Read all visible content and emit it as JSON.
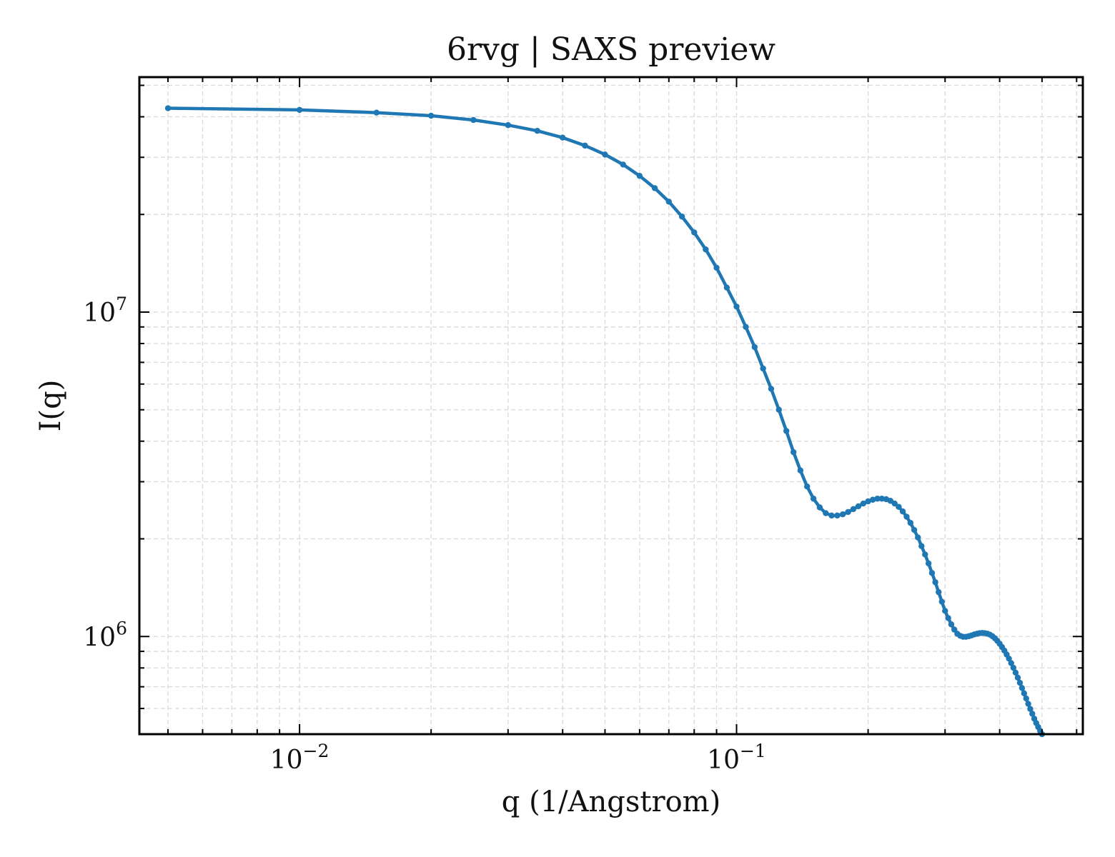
{
  "chart_data": {
    "type": "line",
    "title": "6rvg | SAXS preview",
    "xlabel": "q (1/Angstrom)",
    "ylabel": "I(q)",
    "x_scale": "log",
    "y_scale": "log",
    "xlim": [
      0.0043,
      0.62
    ],
    "ylim": [
      500000,
      53000000
    ],
    "x_ticks": [
      {
        "value": 0.01,
        "base": "10",
        "exp": "−2"
      },
      {
        "value": 0.1,
        "base": "10",
        "exp": "−1"
      }
    ],
    "y_ticks": [
      {
        "value": 1000000,
        "base": "10",
        "exp": "6"
      },
      {
        "value": 10000000,
        "base": "10",
        "exp": "7"
      }
    ],
    "grid": true,
    "line_color": "#1f77b4",
    "series": [
      {
        "marker": "circle",
        "points": [
          [
            0.005,
            42500000
          ],
          [
            0.01,
            42000000
          ],
          [
            0.015,
            41200000
          ],
          [
            0.02,
            40300000
          ],
          [
            0.025,
            39100000
          ],
          [
            0.03,
            37700000
          ],
          [
            0.035,
            36200000
          ],
          [
            0.04,
            34500000
          ],
          [
            0.045,
            32600000
          ],
          [
            0.05,
            30600000
          ],
          [
            0.055,
            28500000
          ],
          [
            0.06,
            26300000
          ],
          [
            0.065,
            24100000
          ],
          [
            0.07,
            21900000
          ],
          [
            0.075,
            19700000
          ],
          [
            0.08,
            17600000
          ],
          [
            0.085,
            15600000
          ],
          [
            0.09,
            13700000
          ],
          [
            0.095,
            11900000
          ],
          [
            0.1,
            10400000
          ],
          [
            0.105,
            9000000
          ],
          [
            0.11,
            7800000
          ],
          [
            0.115,
            6700000
          ],
          [
            0.12,
            5800000
          ],
          [
            0.125,
            5000000
          ],
          [
            0.13,
            4300000
          ],
          [
            0.135,
            3700000
          ],
          [
            0.14,
            3250000
          ],
          [
            0.145,
            2900000
          ],
          [
            0.15,
            2660000
          ],
          [
            0.155,
            2500000
          ],
          [
            0.16,
            2400000
          ],
          [
            0.165,
            2360000
          ],
          [
            0.17,
            2360000
          ],
          [
            0.175,
            2380000
          ],
          [
            0.18,
            2420000
          ],
          [
            0.185,
            2470000
          ],
          [
            0.19,
            2520000
          ],
          [
            0.195,
            2570000
          ],
          [
            0.2,
            2610000
          ],
          [
            0.205,
            2640000
          ],
          [
            0.21,
            2660000
          ],
          [
            0.215,
            2660000
          ],
          [
            0.22,
            2650000
          ],
          [
            0.225,
            2620000
          ],
          [
            0.23,
            2570000
          ],
          [
            0.235,
            2510000
          ],
          [
            0.24,
            2430000
          ],
          [
            0.245,
            2340000
          ],
          [
            0.25,
            2240000
          ],
          [
            0.255,
            2130000
          ],
          [
            0.26,
            2020000
          ],
          [
            0.265,
            1900000
          ],
          [
            0.27,
            1790000
          ],
          [
            0.275,
            1680000
          ],
          [
            0.28,
            1570000
          ],
          [
            0.285,
            1470000
          ],
          [
            0.29,
            1370000
          ],
          [
            0.295,
            1280000
          ],
          [
            0.3,
            1200000
          ],
          [
            0.305,
            1140000
          ],
          [
            0.31,
            1090000
          ],
          [
            0.315,
            1050000
          ],
          [
            0.32,
            1020000
          ],
          [
            0.325,
            1005000
          ],
          [
            0.33,
            998000
          ],
          [
            0.335,
            998000
          ],
          [
            0.34,
            1002000
          ],
          [
            0.345,
            1008000
          ],
          [
            0.35,
            1015000
          ],
          [
            0.355,
            1020000
          ],
          [
            0.36,
            1024000
          ],
          [
            0.365,
            1025000
          ],
          [
            0.37,
            1024000
          ],
          [
            0.375,
            1020000
          ],
          [
            0.38,
            1013000
          ],
          [
            0.385,
            1002000
          ],
          [
            0.39,
            988000
          ],
          [
            0.395,
            970000
          ],
          [
            0.4,
            950000
          ],
          [
            0.405,
            928000
          ],
          [
            0.41,
            905000
          ],
          [
            0.415,
            880000
          ],
          [
            0.42,
            855000
          ],
          [
            0.425,
            828000
          ],
          [
            0.43,
            801000
          ],
          [
            0.435,
            774000
          ],
          [
            0.44,
            747000
          ],
          [
            0.445,
            720000
          ],
          [
            0.45,
            694000
          ],
          [
            0.455,
            668000
          ],
          [
            0.46,
            644000
          ],
          [
            0.465,
            620000
          ],
          [
            0.47,
            598000
          ],
          [
            0.475,
            578000
          ],
          [
            0.48,
            558000
          ],
          [
            0.485,
            541000
          ],
          [
            0.49,
            526000
          ],
          [
            0.495,
            512000
          ],
          [
            0.5,
            500000
          ]
        ]
      }
    ]
  }
}
